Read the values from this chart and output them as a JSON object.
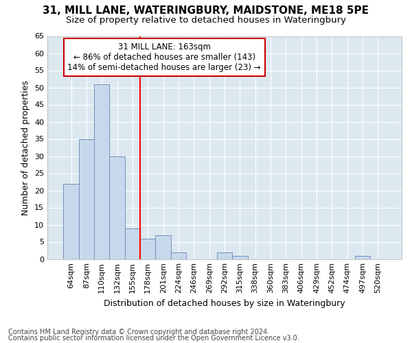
{
  "title1": "31, MILL LANE, WATERINGBURY, MAIDSTONE, ME18 5PE",
  "title2": "Size of property relative to detached houses in Wateringbury",
  "xlabel": "Distribution of detached houses by size in Wateringbury",
  "ylabel": "Number of detached properties",
  "categories": [
    "64sqm",
    "87sqm",
    "110sqm",
    "132sqm",
    "155sqm",
    "178sqm",
    "201sqm",
    "224sqm",
    "246sqm",
    "269sqm",
    "292sqm",
    "315sqm",
    "338sqm",
    "360sqm",
    "383sqm",
    "406sqm",
    "429sqm",
    "452sqm",
    "474sqm",
    "497sqm",
    "520sqm"
  ],
  "values": [
    22,
    35,
    51,
    30,
    9,
    6,
    7,
    2,
    0,
    0,
    2,
    1,
    0,
    0,
    0,
    0,
    0,
    0,
    0,
    1,
    0
  ],
  "bar_color": "#c8d8ec",
  "bar_edge_color": "#7090b8",
  "red_line_x": 4.5,
  "annotation_line1": "31 MILL LANE: 163sqm",
  "annotation_line2": "← 86% of detached houses are smaller (143)",
  "annotation_line3": "14% of semi-detached houses are larger (23) →",
  "annotation_box_color": "#ffffff",
  "annotation_box_edge": "#cc0000",
  "ylim": [
    0,
    65
  ],
  "yticks": [
    0,
    5,
    10,
    15,
    20,
    25,
    30,
    35,
    40,
    45,
    50,
    55,
    60,
    65
  ],
  "footer1": "Contains HM Land Registry data © Crown copyright and database right 2024.",
  "footer2": "Contains public sector information licensed under the Open Government Licence v3.0.",
  "fig_bg_color": "#ffffff",
  "plot_bg_color": "#dce8f0",
  "grid_color": "#ffffff",
  "title1_fontsize": 11,
  "title2_fontsize": 9.5,
  "axis_label_fontsize": 9,
  "tick_fontsize": 8,
  "footer_fontsize": 7
}
